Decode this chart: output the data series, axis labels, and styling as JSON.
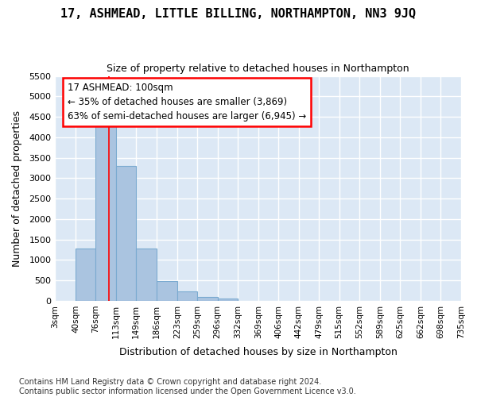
{
  "title": "17, ASHMEAD, LITTLE BILLING, NORTHAMPTON, NN3 9JQ",
  "subtitle": "Size of property relative to detached houses in Northampton",
  "xlabel": "Distribution of detached houses by size in Northampton",
  "ylabel": "Number of detached properties",
  "footnote": "Contains HM Land Registry data © Crown copyright and database right 2024.\nContains public sector information licensed under the Open Government Licence v3.0.",
  "bar_color": "#aac4e0",
  "bar_edge_color": "#7aaad0",
  "red_line_x": 100,
  "annotation_text": "17 ASHMEAD: 100sqm\n← 35% of detached houses are smaller (3,869)\n63% of semi-detached houses are larger (6,945) →",
  "bins": [
    3,
    40,
    76,
    113,
    149,
    186,
    223,
    259,
    296,
    332,
    369,
    406,
    442,
    479,
    515,
    552,
    589,
    625,
    662,
    698,
    735
  ],
  "counts": [
    0,
    1270,
    4350,
    3300,
    1270,
    480,
    230,
    90,
    60,
    0,
    0,
    0,
    0,
    0,
    0,
    0,
    0,
    0,
    0,
    0
  ],
  "ylim": [
    0,
    5500
  ],
  "yticks": [
    0,
    500,
    1000,
    1500,
    2000,
    2500,
    3000,
    3500,
    4000,
    4500,
    5000,
    5500
  ],
  "plot_bg_color": "#dce8f5",
  "grid_color": "#ffffff",
  "fig_bg_color": "#ffffff"
}
